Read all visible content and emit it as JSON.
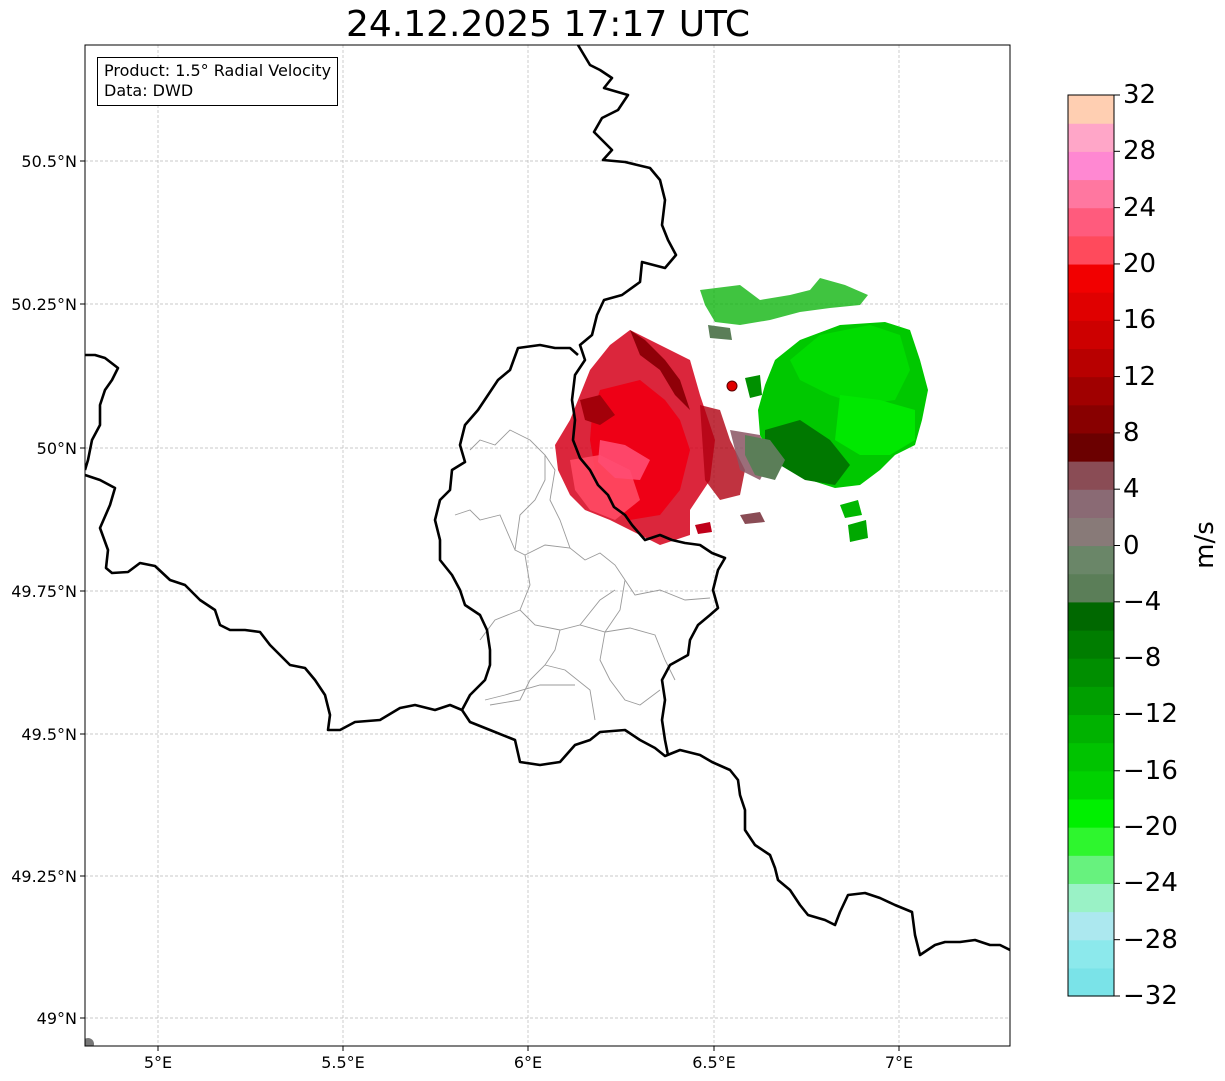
{
  "title": "24.12.2025 17:17 UTC",
  "info": {
    "product": "Product: 1.5° Radial Velocity",
    "data": "Data: DWD"
  },
  "axes": {
    "lat_ticks": [
      "50.5°N",
      "50.25°N",
      "50°N",
      "49.75°N",
      "49.5°N",
      "49.25°N",
      "49°N"
    ],
    "lon_ticks": [
      "5°E",
      "5.5°E",
      "6°E",
      "6.5°E",
      "7°E"
    ]
  },
  "map_data": {
    "extent": {
      "lon": [
        4.8,
        7.3
      ],
      "lat": [
        48.95,
        50.7
      ]
    },
    "radar_site": {
      "lon": 6.55,
      "lat": 50.11
    },
    "features": [
      "country borders",
      "Luxembourg district borders",
      "radar velocity echoes"
    ]
  },
  "colorbar": {
    "unit": "m/s",
    "min": -32,
    "max": 32,
    "ticks": [
      "32",
      "28",
      "24",
      "20",
      "16",
      "12",
      "8",
      "4",
      "0",
      "−4",
      "−8",
      "−12",
      "−16",
      "−20",
      "−24",
      "−28",
      "−32"
    ],
    "colors": [
      "#7ae3e8",
      "#8ce9ec",
      "#ace8ef",
      "#9af2c6",
      "#67f27e",
      "#2ef62e",
      "#00f000",
      "#00d200",
      "#00c300",
      "#00b200",
      "#009f00",
      "#008e00",
      "#007d00",
      "#006800",
      "#5b7e58",
      "#6a8668",
      "#887a78",
      "#8a6a74",
      "#8a4c55",
      "#6b0000",
      "#880000",
      "#a00000",
      "#b80000",
      "#cd0000",
      "#e00000",
      "#f20000",
      "#ff4a5c",
      "#ff5b7d",
      "#ff77a0",
      "#ff88d2",
      "#ffa6c8",
      "#ffcfb2"
    ]
  }
}
